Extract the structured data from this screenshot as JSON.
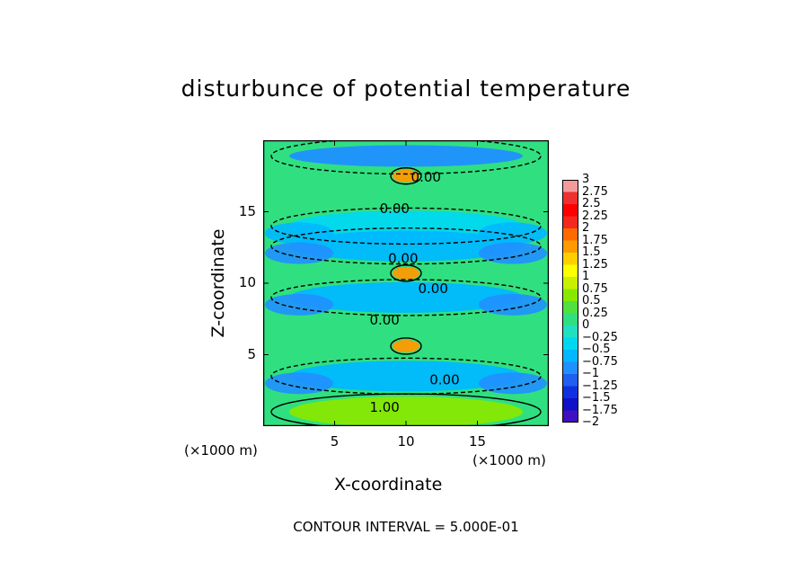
{
  "chart_data": {
    "type": "heatmap",
    "title": "disturbunce of potential temperature",
    "xlabel": "X-coordinate",
    "ylabel": "Z-coordinate",
    "x_unit": "(×1000 m)",
    "y_unit": "(×1000 m)",
    "xlim": [
      0,
      20
    ],
    "ylim": [
      0,
      20
    ],
    "x_ticks": [
      "5",
      "10",
      "15"
    ],
    "x_tick_values": [
      5,
      10,
      15
    ],
    "y_ticks": [
      "5",
      "10",
      "15"
    ],
    "y_tick_values": [
      5,
      10,
      15
    ],
    "contour_interval_text": "CONTOUR INTERVAL = 5.000E-01",
    "contour_labels": [
      {
        "text": "0.00",
        "x": 11.4,
        "z": 17.4
      },
      {
        "text": "0.00",
        "x": 9.2,
        "z": 15.2
      },
      {
        "text": "0.00",
        "x": 9.8,
        "z": 11.7
      },
      {
        "text": "0.00",
        "x": 11.9,
        "z": 9.6
      },
      {
        "text": "0.00",
        "x": 8.5,
        "z": 7.4
      },
      {
        "text": "0.00",
        "x": 12.7,
        "z": 3.2
      },
      {
        "text": "1.00",
        "x": 8.5,
        "z": 1.3
      }
    ],
    "colorbar": {
      "min": -2,
      "max": 3,
      "step": 0.25,
      "labels": [
        "3",
        "2.75",
        "2.5",
        "2.25",
        "2",
        "1.75",
        "1.5",
        "1.25",
        "1",
        "0.75",
        "0.5",
        "0.25",
        "0",
        "−0.25",
        "−0.5",
        "−0.75",
        "−1",
        "−1.25",
        "−1.5",
        "−1.75",
        "−2"
      ],
      "colors": [
        "#f59a9a",
        "#ef3030",
        "#ff0000",
        "#f4281e",
        "#ff6a00",
        "#ff9a00",
        "#ffd000",
        "#ffff00",
        "#c8f000",
        "#88e800",
        "#50e040",
        "#30e080",
        "#20e0c0",
        "#00d8f0",
        "#00b8ff",
        "#2090ff",
        "#2060f0",
        "#1030e0",
        "#1010c8",
        "#4010c0"
      ]
    },
    "field_description_levels": {
      "background": 0.25,
      "bands": [
        {
          "z": 18.9,
          "value": -0.75
        },
        {
          "z": 17.5,
          "value": 1.75
        },
        {
          "z": 14.0,
          "value": -0.25
        },
        {
          "z": 12.6,
          "value": -0.5
        },
        {
          "z": 10.7,
          "value": 1.75
        },
        {
          "z": 9.0,
          "value": -0.5
        },
        {
          "z": 5.6,
          "value": 1.75
        },
        {
          "z": 3.5,
          "value": -0.5
        },
        {
          "z": 1.0,
          "value": 0.75
        }
      ]
    }
  }
}
